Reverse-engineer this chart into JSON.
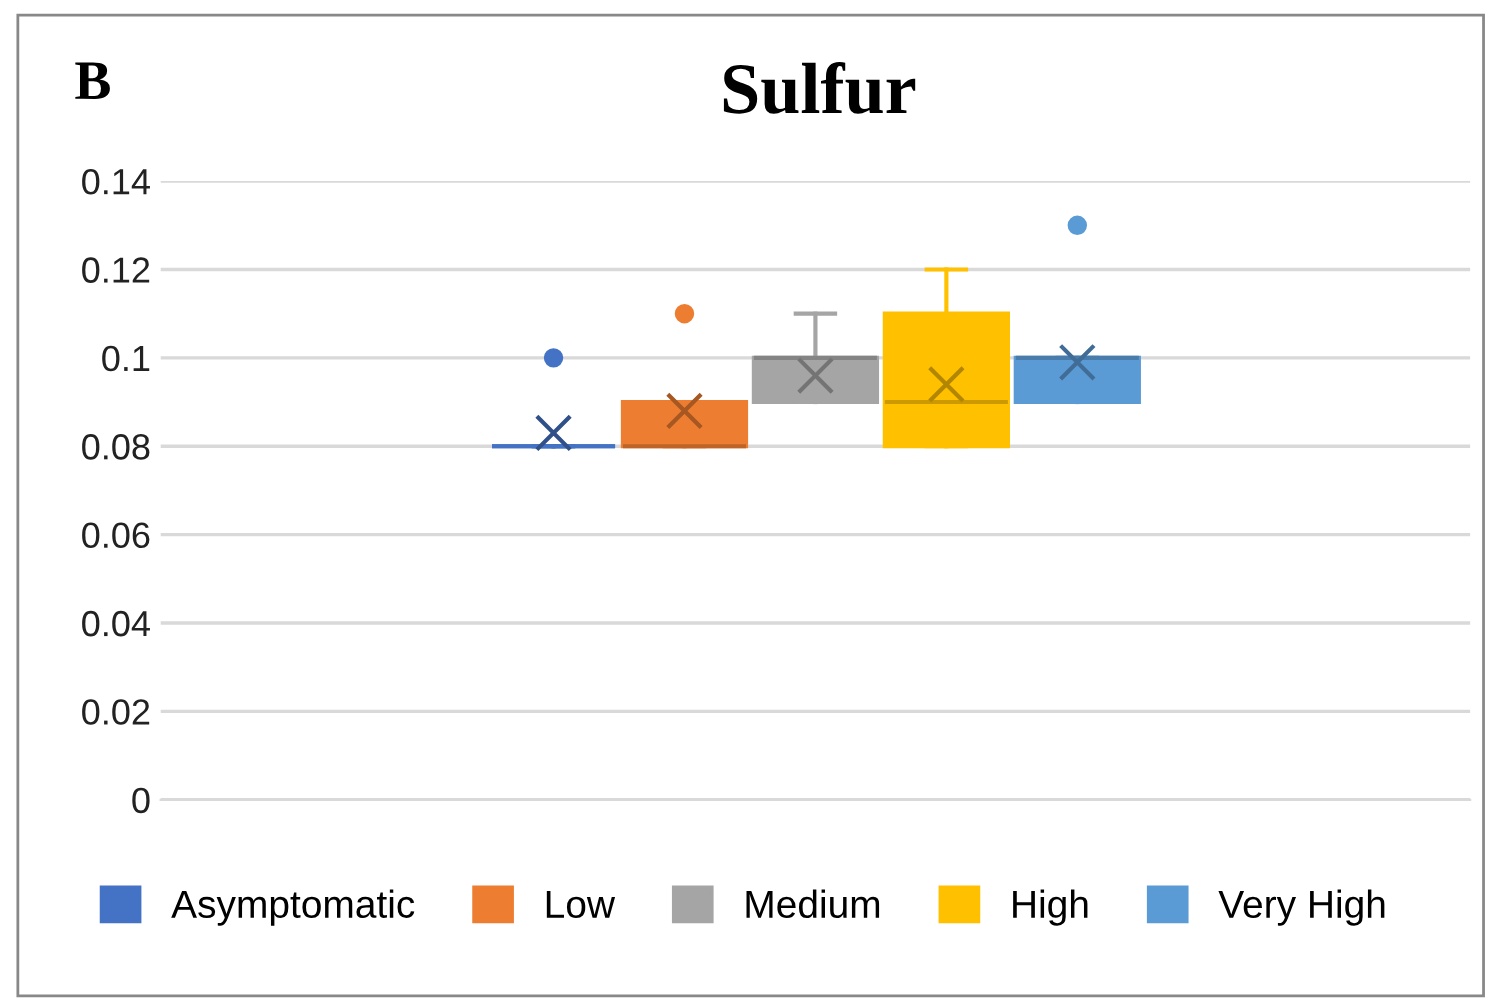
{
  "chart_data": {
    "type": "box",
    "title": "Sulfur",
    "annotations": [
      "B"
    ],
    "categories": [
      null
    ],
    "series": [
      {
        "name": "Asymptomatic",
        "color": "#4472c4",
        "boxes": [
          {
            "low": 0.08,
            "q1": 0.08,
            "median": 0.08,
            "q3": 0.08,
            "high": 0.08,
            "mean": 0.083,
            "outliers": [
              0.1
            ]
          }
        ]
      },
      {
        "name": "Low",
        "color": "#ed7d31",
        "boxes": [
          {
            "low": 0.08,
            "q1": 0.08,
            "median": 0.08,
            "q3": 0.09,
            "high": 0.09,
            "mean": 0.088,
            "outliers": [
              0.11
            ]
          }
        ]
      },
      {
        "name": "Medium",
        "color": "#a5a5a5",
        "boxes": [
          {
            "low": 0.09,
            "q1": 0.09,
            "median": 0.1,
            "q3": 0.1,
            "high": 0.11,
            "mean": 0.096
          }
        ]
      },
      {
        "name": "High",
        "color": "#ffc000",
        "boxes": [
          {
            "low": 0.08,
            "q1": 0.08,
            "median": 0.09,
            "q3": 0.11,
            "high": 0.12,
            "mean": 0.094
          }
        ]
      },
      {
        "name": "Very High",
        "color": "#5b9bd5",
        "boxes": [
          {
            "low": 0.09,
            "q1": 0.09,
            "median": 0.1,
            "q3": 0.1,
            "high": 0.1,
            "mean": 0.099,
            "outliers": [
              0.13
            ]
          }
        ]
      }
    ],
    "ylim": [
      0,
      0.14
    ],
    "yticks": [
      0,
      0.02,
      0.04,
      0.06,
      0.08,
      0.1,
      0.12,
      0.14
    ],
    "grid": "y",
    "legend": "bottom",
    "tick_labels": "y",
    "marker": "cross"
  }
}
